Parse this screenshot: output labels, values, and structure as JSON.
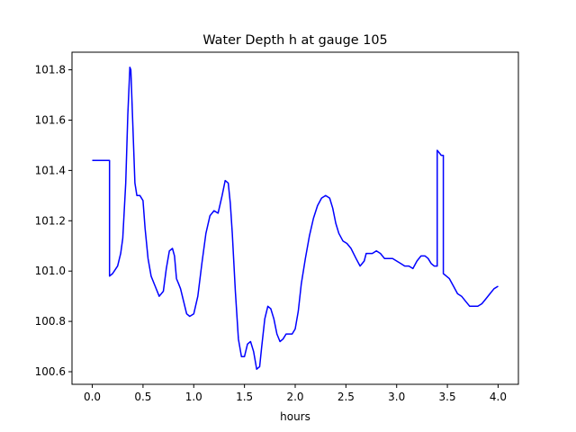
{
  "chart_data": {
    "type": "line",
    "title": "Water Depth h at gauge 105",
    "xlabel": "hours",
    "ylabel": "",
    "xlim": [
      -0.2,
      4.2
    ],
    "ylim": [
      100.55,
      101.87
    ],
    "xticks": [
      0.0,
      0.5,
      1.0,
      1.5,
      2.0,
      2.5,
      3.0,
      3.5,
      4.0
    ],
    "xtick_labels": [
      "0.0",
      "0.5",
      "1.0",
      "1.5",
      "2.0",
      "2.5",
      "3.0",
      "3.5",
      "4.0"
    ],
    "yticks": [
      100.6,
      100.8,
      101.0,
      101.2,
      101.4,
      101.6,
      101.8
    ],
    "ytick_labels": [
      "100.6",
      "100.8",
      "101.0",
      "101.2",
      "101.4",
      "101.6",
      "101.8"
    ],
    "grid": false,
    "series": [
      {
        "color": "#0000ff",
        "x": [
          0.0,
          0.1,
          0.17,
          0.17,
          0.2,
          0.25,
          0.28,
          0.3,
          0.33,
          0.35,
          0.37,
          0.38,
          0.4,
          0.42,
          0.44,
          0.47,
          0.5,
          0.52,
          0.55,
          0.58,
          0.62,
          0.66,
          0.7,
          0.73,
          0.76,
          0.79,
          0.81,
          0.83,
          0.85,
          0.87,
          0.9,
          0.93,
          0.96,
          1.0,
          1.04,
          1.08,
          1.12,
          1.16,
          1.2,
          1.24,
          1.28,
          1.31,
          1.34,
          1.36,
          1.38,
          1.41,
          1.44,
          1.47,
          1.5,
          1.53,
          1.56,
          1.59,
          1.62,
          1.65,
          1.67,
          1.7,
          1.73,
          1.76,
          1.79,
          1.82,
          1.85,
          1.88,
          1.91,
          1.94,
          1.97,
          2.0,
          2.03,
          2.06,
          2.1,
          2.14,
          2.18,
          2.22,
          2.26,
          2.3,
          2.34,
          2.37,
          2.4,
          2.43,
          2.47,
          2.51,
          2.55,
          2.6,
          2.64,
          2.68,
          2.7,
          2.73,
          2.76,
          2.8,
          2.84,
          2.88,
          2.92,
          2.96,
          3.0,
          3.04,
          3.08,
          3.12,
          3.16,
          3.2,
          3.24,
          3.28,
          3.31,
          3.34,
          3.37,
          3.38,
          3.4,
          3.4,
          3.42,
          3.44,
          3.46,
          3.46,
          3.49,
          3.52,
          3.56,
          3.6,
          3.64,
          3.68,
          3.72,
          3.76,
          3.8,
          3.84,
          3.88,
          3.92,
          3.96,
          4.0
        ],
        "y": [
          101.44,
          101.44,
          101.44,
          100.98,
          100.99,
          101.02,
          101.07,
          101.13,
          101.35,
          101.62,
          101.81,
          101.8,
          101.58,
          101.35,
          101.3,
          101.3,
          101.28,
          101.17,
          101.05,
          100.98,
          100.94,
          100.9,
          100.92,
          101.01,
          101.08,
          101.09,
          101.06,
          100.97,
          100.95,
          100.93,
          100.88,
          100.83,
          100.82,
          100.83,
          100.9,
          101.03,
          101.15,
          101.22,
          101.24,
          101.23,
          101.3,
          101.36,
          101.35,
          101.27,
          101.15,
          100.92,
          100.73,
          100.66,
          100.66,
          100.71,
          100.72,
          100.68,
          100.61,
          100.62,
          100.7,
          100.81,
          100.86,
          100.85,
          100.81,
          100.75,
          100.72,
          100.73,
          100.75,
          100.75,
          100.75,
          100.77,
          100.84,
          100.95,
          101.05,
          101.14,
          101.21,
          101.26,
          101.29,
          101.3,
          101.29,
          101.25,
          101.19,
          101.15,
          101.12,
          101.11,
          101.09,
          101.05,
          101.02,
          101.04,
          101.07,
          101.07,
          101.07,
          101.08,
          101.07,
          101.05,
          101.05,
          101.05,
          101.04,
          101.03,
          101.02,
          101.02,
          101.01,
          101.04,
          101.06,
          101.06,
          101.05,
          101.03,
          101.02,
          101.02,
          101.02,
          101.48,
          101.47,
          101.46,
          101.46,
          100.99,
          100.98,
          100.97,
          100.94,
          100.91,
          100.9,
          100.88,
          100.86,
          100.86,
          100.86,
          100.87,
          100.89,
          100.91,
          100.93,
          100.94
        ]
      }
    ]
  }
}
